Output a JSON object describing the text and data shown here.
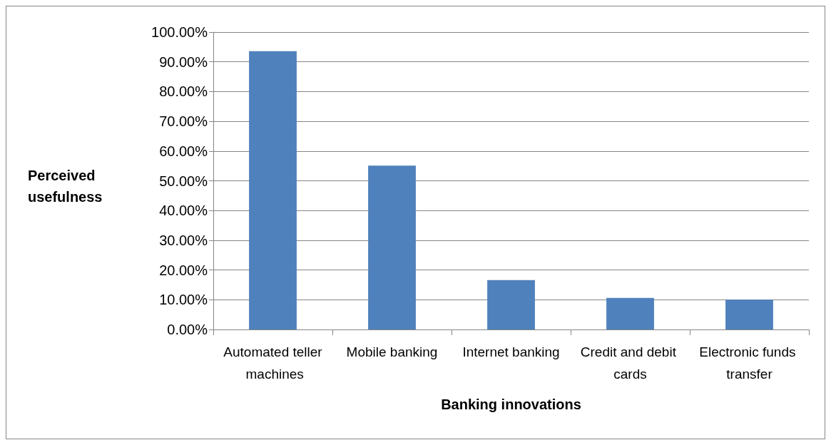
{
  "chart_data": {
    "type": "bar",
    "xlabel": "Banking innovations",
    "ylabel": "Perceived usefulness",
    "categories": [
      "Automated teller machines",
      "Mobile banking",
      "Internet banking",
      "Credit and debit cards",
      "Electronic funds transfer"
    ],
    "values": [
      93.6,
      55.1,
      16.6,
      10.6,
      10.0
    ],
    "color": "#4f81bd",
    "ylim": [
      0,
      100
    ],
    "yticks": [
      {
        "value": 0,
        "label": "0.00%"
      },
      {
        "value": 10,
        "label": "10.00%"
      },
      {
        "value": 20,
        "label": "20.00%"
      },
      {
        "value": 30,
        "label": "30.00%"
      },
      {
        "value": 40,
        "label": "40.00%"
      },
      {
        "value": 50,
        "label": "50.00%"
      },
      {
        "value": 60,
        "label": "60.00%"
      },
      {
        "value": 70,
        "label": "70.00%"
      },
      {
        "value": 80,
        "label": "80.00%"
      },
      {
        "value": 90,
        "label": "90.00%"
      },
      {
        "value": 100,
        "label": "100.00%"
      }
    ],
    "grid": "y"
  }
}
